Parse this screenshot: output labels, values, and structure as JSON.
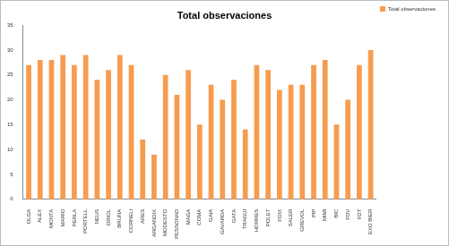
{
  "chart_data": {
    "type": "bar",
    "title": "Total observaciones",
    "categories": [
      "OLGA",
      "ALEX",
      "MONTA",
      "MARIO",
      "PERLA",
      "PORTELL",
      "NEUS",
      "ORIOL",
      "BRUNA",
      "CORNELI",
      "ARES",
      "ARGANDIX",
      "MODESTO",
      "PESSONAD",
      "MAGA",
      "COMA",
      "GAIA",
      "GAVARDA",
      "GATA",
      "TRAGUI",
      "HORRES",
      "POLET",
      "FOIX",
      "SALER",
      "GREVOL",
      "PIP",
      "MIMI",
      "BIC",
      "FDV",
      "FDT",
      "EXO BIER"
    ],
    "series": [
      {
        "name": "Total observaciones",
        "color": "#f79c4f",
        "values": [
          27,
          28,
          28,
          29,
          27,
          29,
          24,
          26,
          29,
          27,
          12,
          9,
          25,
          21,
          26,
          15,
          23,
          20,
          24,
          14,
          27,
          26,
          22,
          23,
          23,
          27,
          28,
          15,
          20,
          27,
          30
        ]
      }
    ],
    "ylim": [
      0,
      35
    ],
    "yticks": [
      0,
      5,
      10,
      15,
      20,
      25,
      30,
      35
    ],
    "grid": false,
    "legend": "right"
  }
}
